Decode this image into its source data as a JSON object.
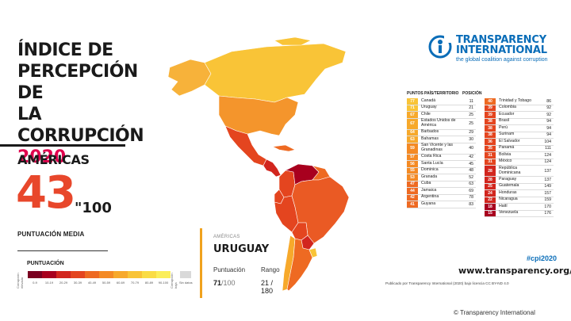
{
  "title": {
    "line1": "ÍNDICE DE",
    "line2": "PERCEPCIÓN DE",
    "line3": "LA CORRUPCIÓN",
    "year": "2020"
  },
  "region": "AMÉRICAS",
  "average": {
    "score": "43",
    "max": "\"100",
    "label": "PUNTUACIÓN MEDIA"
  },
  "legend": {
    "title": "PUNTUACIÓN",
    "low_end_label": "Corrupción elevada",
    "high_end_label": "Corrupción baja",
    "ranges": [
      "0-9",
      "10-19",
      "20-29",
      "30-39",
      "40-49",
      "50-59",
      "60-69",
      "70-79",
      "80-89",
      "90-100"
    ],
    "colors": [
      "#7a0020",
      "#a8001e",
      "#d2261e",
      "#e4451f",
      "#ee6a22",
      "#f48a24",
      "#f7a92b",
      "#f9c437",
      "#fadc45",
      "#fbee5a"
    ],
    "no_data_label": "Sin datos",
    "no_data_color": "#d9d9d9"
  },
  "highlight": {
    "region": "AMÉRICAS",
    "country": "URUGUAY",
    "score_label": "Puntuación",
    "rank_label": "Rango",
    "score": "71",
    "score_max": "/100",
    "rank": "21 /",
    "rank_max": "180"
  },
  "logo": {
    "line1": "TRANSPARENCY",
    "line2": "INTERNATIONAL",
    "tagline": "the global coalition against corruption",
    "icon": "ti-logo-icon"
  },
  "table": {
    "headers": {
      "score": "PUNTOS",
      "country": "PAÍS/TERRITORIO",
      "rank": "POSICIÓN"
    },
    "left": [
      {
        "score": "77",
        "name": "Canadá",
        "rank": "11",
        "color": "#f9c437"
      },
      {
        "score": "71",
        "name": "Uruguay",
        "rank": "21",
        "color": "#f9c437"
      },
      {
        "score": "67",
        "name": "Chile",
        "rank": "25",
        "color": "#f7a92b"
      },
      {
        "score": "67",
        "name": "Estados Unidos de América",
        "rank": "25",
        "color": "#f7a92b",
        "tall": true
      },
      {
        "score": "64",
        "name": "Barbados",
        "rank": "29",
        "color": "#f7a92b"
      },
      {
        "score": "63",
        "name": "Bahamas",
        "rank": "30",
        "color": "#f7a92b"
      },
      {
        "score": "59",
        "name": "San Vicente y las Granadinas",
        "rank": "40",
        "color": "#f48a24",
        "tall": true
      },
      {
        "score": "57",
        "name": "Costa Rica",
        "rank": "42",
        "color": "#f48a24"
      },
      {
        "score": "56",
        "name": "Santa Lucía",
        "rank": "45",
        "color": "#f48a24"
      },
      {
        "score": "55",
        "name": "Dominica",
        "rank": "48",
        "color": "#f48a24"
      },
      {
        "score": "53",
        "name": "Granada",
        "rank": "52",
        "color": "#f48a24"
      },
      {
        "score": "47",
        "name": "Cuba",
        "rank": "63",
        "color": "#ee6a22"
      },
      {
        "score": "44",
        "name": "Jamaica",
        "rank": "69",
        "color": "#ee6a22"
      },
      {
        "score": "42",
        "name": "Argentina",
        "rank": "78",
        "color": "#ee6a22"
      },
      {
        "score": "41",
        "name": "Guyana",
        "rank": "83",
        "color": "#ee6a22"
      }
    ],
    "right": [
      {
        "score": "40",
        "name": "Trinidad y Tobago",
        "rank": "86",
        "color": "#ee6a22"
      },
      {
        "score": "39",
        "name": "Colombia",
        "rank": "92",
        "color": "#e4451f"
      },
      {
        "score": "39",
        "name": "Ecuador",
        "rank": "92",
        "color": "#e4451f"
      },
      {
        "score": "38",
        "name": "Brasil",
        "rank": "94",
        "color": "#e4451f"
      },
      {
        "score": "38",
        "name": "Perú",
        "rank": "94",
        "color": "#e4451f"
      },
      {
        "score": "38",
        "name": "Surinam",
        "rank": "94",
        "color": "#e4451f"
      },
      {
        "score": "36",
        "name": "El Salvador",
        "rank": "104",
        "color": "#e4451f"
      },
      {
        "score": "35",
        "name": "Panamá",
        "rank": "111",
        "color": "#e4451f"
      },
      {
        "score": "31",
        "name": "Bolivia",
        "rank": "124",
        "color": "#e4451f"
      },
      {
        "score": "31",
        "name": "México",
        "rank": "124",
        "color": "#e4451f"
      },
      {
        "score": "28",
        "name": "República Dominicana",
        "rank": "137",
        "color": "#d2261e",
        "tall": true
      },
      {
        "score": "28",
        "name": "Paraguay",
        "rank": "137",
        "color": "#d2261e"
      },
      {
        "score": "25",
        "name": "Guatemala",
        "rank": "149",
        "color": "#d2261e"
      },
      {
        "score": "24",
        "name": "Honduras",
        "rank": "157",
        "color": "#d2261e"
      },
      {
        "score": "22",
        "name": "Nicaragua",
        "rank": "159",
        "color": "#d2261e"
      },
      {
        "score": "18",
        "name": "Haití",
        "rank": "170",
        "color": "#a8001e"
      },
      {
        "score": "15",
        "name": "Venezuela",
        "rank": "176",
        "color": "#a8001e"
      }
    ]
  },
  "footer": {
    "hashtag": "#cpi2020",
    "url": "www.transparency.org/cpi",
    "license": "Publicado por Transparency International (2020) bajo licencia CC BY-ND 4.0",
    "credit": "© Transparency International"
  }
}
